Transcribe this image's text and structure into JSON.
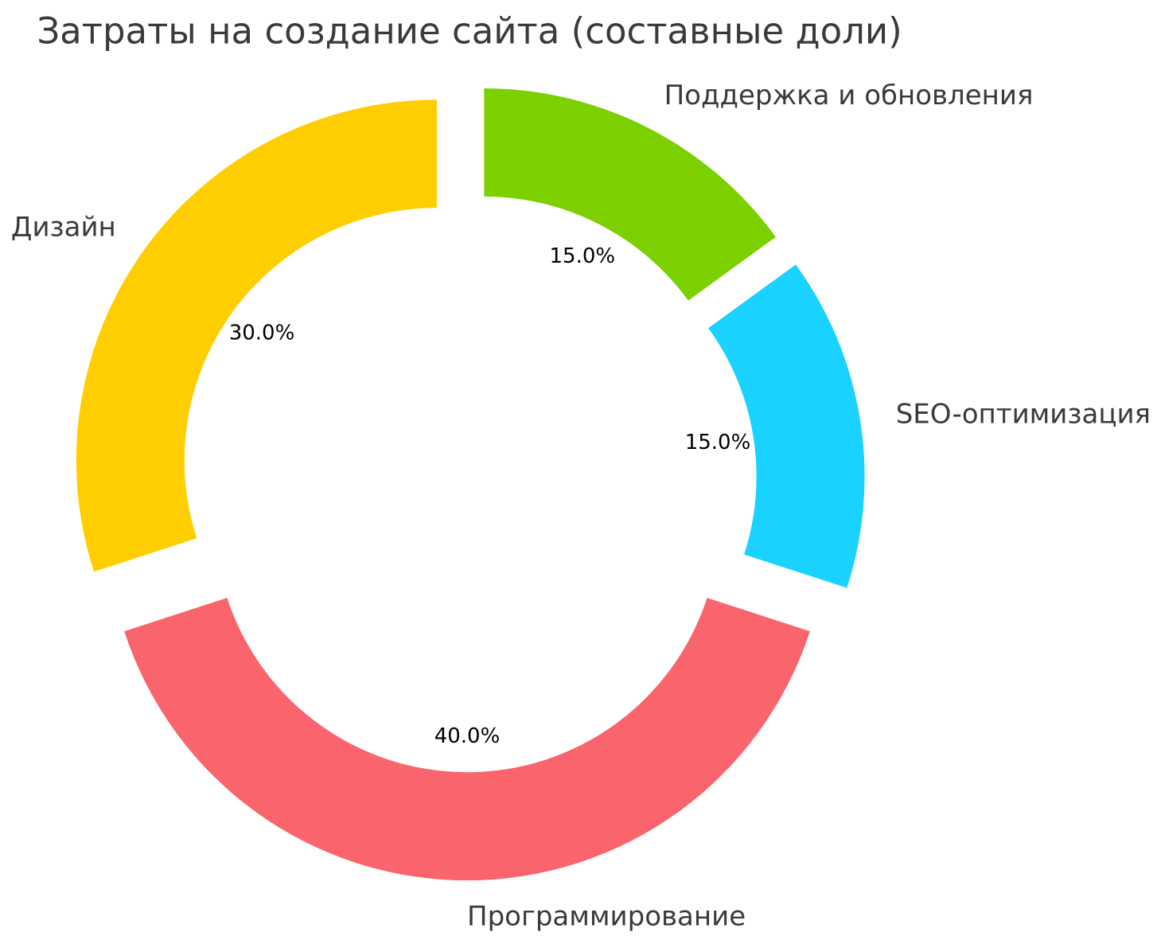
{
  "chart_data": {
    "type": "pie",
    "subtype": "donut",
    "title": "Затраты на создание сайта (составные доли)",
    "legend": false,
    "background": "#FFFFFF",
    "title_color": "#3A3A3A",
    "label_color": "#3A3A3A",
    "pct_color": "#000000",
    "start_angle": 90,
    "direction": "clockwise",
    "donut_hole_ratio": 0.7,
    "explode": 0.104,
    "pct_distance": 0.6,
    "label_distance": 1.1,
    "categories": [
      "Поддержка и обновления",
      "SEO-оптимизация",
      "Программирование",
      "Дизайн"
    ],
    "values": [
      15.0,
      15.0,
      40.0,
      30.0
    ],
    "slices": [
      {
        "slug": "support-and-updates",
        "label": "Поддержка и обновления",
        "value": 15.0,
        "pct_label": "15.0%",
        "color": "#7DD000"
      },
      {
        "slug": "seo-optimization",
        "label": "SEO-оптимизация",
        "value": 15.0,
        "pct_label": "15.0%",
        "color": "#1AD2FF"
      },
      {
        "slug": "programming",
        "label": "Программирование",
        "value": 40.0,
        "pct_label": "40.0%",
        "color": "#FA646C"
      },
      {
        "slug": "design",
        "label": "Дизайн",
        "value": 30.0,
        "pct_label": "30.0%",
        "color": "#FFCE00"
      }
    ]
  }
}
